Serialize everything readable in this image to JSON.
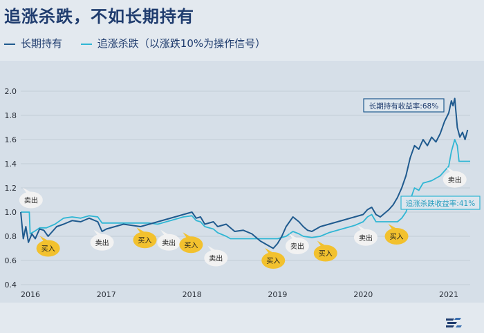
{
  "header": {
    "title": "追涨杀跌，不如长期持有"
  },
  "colors": {
    "long_hold": "#1f5a8e",
    "chase": "#2fb6d4",
    "buy_bubble": "#f2c12e",
    "sell_bubble": "#f2f2f2"
  },
  "chart_data": {
    "type": "line",
    "title": "追涨杀跌，不如长期持有",
    "xlabel": "",
    "ylabel": "",
    "xlim": [
      2016.0,
      2021.25
    ],
    "ylim": [
      0.4,
      2.0
    ],
    "yticks": [
      0.4,
      0.6,
      0.8,
      1.0,
      1.2,
      1.4,
      1.6,
      1.8,
      2.0
    ],
    "ytick_labels": [
      "0.4",
      "0.6",
      "0.8",
      "1.0",
      "1.2",
      "1.4",
      "1.6",
      "1.8",
      "2.0"
    ],
    "xticks": [
      2016,
      2017,
      2018,
      2019,
      2020,
      2021
    ],
    "xtick_labels": [
      "2016",
      "2017",
      "2018",
      "2019",
      "2020",
      "2021"
    ],
    "series": [
      {
        "name": "长期持有",
        "points": [
          [
            2016.0,
            1.0
          ],
          [
            2016.03,
            0.78
          ],
          [
            2016.06,
            0.88
          ],
          [
            2016.09,
            0.75
          ],
          [
            2016.13,
            0.82
          ],
          [
            2016.17,
            0.78
          ],
          [
            2016.22,
            0.86
          ],
          [
            2016.27,
            0.85
          ],
          [
            2016.32,
            0.8
          ],
          [
            2016.37,
            0.84
          ],
          [
            2016.42,
            0.88
          ],
          [
            2016.5,
            0.9
          ],
          [
            2016.6,
            0.93
          ],
          [
            2016.7,
            0.92
          ],
          [
            2016.8,
            0.95
          ],
          [
            2016.9,
            0.92
          ],
          [
            2016.95,
            0.84
          ],
          [
            2017.0,
            0.86
          ],
          [
            2017.1,
            0.88
          ],
          [
            2017.2,
            0.9
          ],
          [
            2017.3,
            0.89
          ],
          [
            2017.4,
            0.88
          ],
          [
            2017.5,
            0.9
          ],
          [
            2017.6,
            0.92
          ],
          [
            2017.7,
            0.94
          ],
          [
            2017.8,
            0.96
          ],
          [
            2017.9,
            0.98
          ],
          [
            2018.0,
            1.0
          ],
          [
            2018.05,
            0.95
          ],
          [
            2018.1,
            0.96
          ],
          [
            2018.15,
            0.9
          ],
          [
            2018.25,
            0.92
          ],
          [
            2018.3,
            0.88
          ],
          [
            2018.4,
            0.9
          ],
          [
            2018.5,
            0.84
          ],
          [
            2018.6,
            0.85
          ],
          [
            2018.7,
            0.82
          ],
          [
            2018.8,
            0.76
          ],
          [
            2018.9,
            0.72
          ],
          [
            2018.95,
            0.7
          ],
          [
            2019.0,
            0.74
          ],
          [
            2019.05,
            0.8
          ],
          [
            2019.1,
            0.88
          ],
          [
            2019.18,
            0.96
          ],
          [
            2019.25,
            0.92
          ],
          [
            2019.3,
            0.88
          ],
          [
            2019.35,
            0.85
          ],
          [
            2019.4,
            0.84
          ],
          [
            2019.5,
            0.88
          ],
          [
            2019.6,
            0.9
          ],
          [
            2019.7,
            0.92
          ],
          [
            2019.8,
            0.94
          ],
          [
            2019.9,
            0.96
          ],
          [
            2020.0,
            0.98
          ],
          [
            2020.05,
            1.02
          ],
          [
            2020.1,
            1.04
          ],
          [
            2020.15,
            0.98
          ],
          [
            2020.2,
            0.96
          ],
          [
            2020.3,
            1.02
          ],
          [
            2020.35,
            1.06
          ],
          [
            2020.4,
            1.12
          ],
          [
            2020.45,
            1.2
          ],
          [
            2020.5,
            1.3
          ],
          [
            2020.55,
            1.45
          ],
          [
            2020.6,
            1.55
          ],
          [
            2020.65,
            1.52
          ],
          [
            2020.7,
            1.6
          ],
          [
            2020.75,
            1.55
          ],
          [
            2020.8,
            1.62
          ],
          [
            2020.85,
            1.58
          ],
          [
            2020.9,
            1.65
          ],
          [
            2020.95,
            1.75
          ],
          [
            2021.0,
            1.82
          ],
          [
            2021.03,
            1.92
          ],
          [
            2021.05,
            1.88
          ],
          [
            2021.07,
            1.94
          ],
          [
            2021.1,
            1.7
          ],
          [
            2021.13,
            1.62
          ],
          [
            2021.16,
            1.66
          ],
          [
            2021.19,
            1.6
          ],
          [
            2021.22,
            1.68
          ]
        ]
      },
      {
        "name": "追涨杀跌（以涨跌10%为操作信号）",
        "points": [
          [
            2016.0,
            1.0
          ],
          [
            2016.1,
            1.0
          ],
          [
            2016.11,
            0.82
          ],
          [
            2016.18,
            0.85
          ],
          [
            2016.22,
            0.87
          ],
          [
            2016.3,
            0.87
          ],
          [
            2016.4,
            0.9
          ],
          [
            2016.5,
            0.95
          ],
          [
            2016.6,
            0.96
          ],
          [
            2016.7,
            0.95
          ],
          [
            2016.8,
            0.97
          ],
          [
            2016.9,
            0.96
          ],
          [
            2016.95,
            0.91
          ],
          [
            2017.5,
            0.91
          ],
          [
            2017.6,
            0.9
          ],
          [
            2017.7,
            0.92
          ],
          [
            2017.8,
            0.94
          ],
          [
            2017.9,
            0.96
          ],
          [
            2018.0,
            0.97
          ],
          [
            2018.05,
            0.93
          ],
          [
            2018.1,
            0.92
          ],
          [
            2018.15,
            0.88
          ],
          [
            2018.25,
            0.86
          ],
          [
            2018.3,
            0.83
          ],
          [
            2018.4,
            0.8
          ],
          [
            2018.45,
            0.78
          ],
          [
            2018.55,
            0.78
          ],
          [
            2019.0,
            0.78
          ],
          [
            2019.1,
            0.8
          ],
          [
            2019.18,
            0.84
          ],
          [
            2019.25,
            0.82
          ],
          [
            2019.3,
            0.8
          ],
          [
            2019.4,
            0.79
          ],
          [
            2019.5,
            0.8
          ],
          [
            2019.6,
            0.83
          ],
          [
            2019.7,
            0.85
          ],
          [
            2019.8,
            0.87
          ],
          [
            2019.9,
            0.89
          ],
          [
            2020.0,
            0.92
          ],
          [
            2020.05,
            0.96
          ],
          [
            2020.1,
            0.98
          ],
          [
            2020.15,
            0.92
          ],
          [
            2020.4,
            0.92
          ],
          [
            2020.45,
            0.95
          ],
          [
            2020.5,
            1.0
          ],
          [
            2020.55,
            1.1
          ],
          [
            2020.6,
            1.2
          ],
          [
            2020.65,
            1.18
          ],
          [
            2020.7,
            1.24
          ],
          [
            2020.8,
            1.26
          ],
          [
            2020.9,
            1.3
          ],
          [
            2021.0,
            1.38
          ],
          [
            2021.03,
            1.5
          ],
          [
            2021.07,
            1.6
          ],
          [
            2021.1,
            1.55
          ],
          [
            2021.12,
            1.42
          ],
          [
            2021.25,
            1.42
          ]
        ]
      }
    ],
    "annotations": [
      {
        "text": "卖出",
        "kind": "sell",
        "x": 2016.12,
        "y": 1.1
      },
      {
        "text": "买入",
        "kind": "buy",
        "x": 2016.32,
        "y": 0.7
      },
      {
        "text": "卖出",
        "kind": "sell",
        "x": 2016.95,
        "y": 0.75
      },
      {
        "text": "买入",
        "kind": "buy",
        "x": 2017.45,
        "y": 0.77
      },
      {
        "text": "卖出",
        "kind": "sell",
        "x": 2017.73,
        "y": 0.75
      },
      {
        "text": "买入",
        "kind": "buy",
        "x": 2017.99,
        "y": 0.73
      },
      {
        "text": "卖出",
        "kind": "sell",
        "x": 2018.28,
        "y": 0.62
      },
      {
        "text": "买入",
        "kind": "buy",
        "x": 2018.95,
        "y": 0.6
      },
      {
        "text": "卖出",
        "kind": "sell",
        "x": 2019.23,
        "y": 0.72
      },
      {
        "text": "买入",
        "kind": "buy",
        "x": 2019.56,
        "y": 0.66
      },
      {
        "text": "卖出",
        "kind": "sell",
        "x": 2020.03,
        "y": 0.79
      },
      {
        "text": "买入",
        "kind": "buy",
        "x": 2020.39,
        "y": 0.8
      },
      {
        "text": "卖出",
        "kind": "sell",
        "x": 2021.07,
        "y": 1.27
      }
    ],
    "labels": [
      {
        "text": "长期持有收益率:68%",
        "series": 0
      },
      {
        "text": "追涨杀跌收益率:41%",
        "series": 1
      }
    ]
  }
}
